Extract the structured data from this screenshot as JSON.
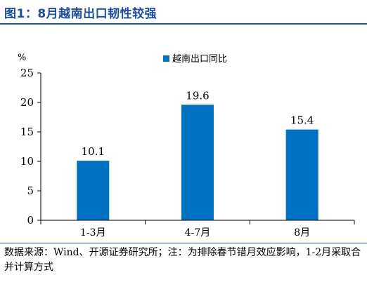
{
  "figure": {
    "title": "图1：8月越南出口韧性较强",
    "note": "数据来源：Wind、开源证券研究所；注：为排除春节错月效应影响，1-2月采取合并计算方式"
  },
  "chart_data": {
    "type": "bar",
    "title": "",
    "xlabel": "",
    "ylabel": "%",
    "categories": [
      "1-3月",
      "4-7月",
      "8月"
    ],
    "series": [
      {
        "name": "越南出口同比",
        "values": [
          10.1,
          19.6,
          15.4
        ],
        "color": "#0070c0"
      }
    ],
    "data_labels": [
      "10.1",
      "19.6",
      "15.4"
    ],
    "ylim": [
      0,
      25
    ],
    "yticks": [
      0,
      5,
      10,
      15,
      20,
      25
    ],
    "grid": false,
    "legend_position": "top-center"
  }
}
